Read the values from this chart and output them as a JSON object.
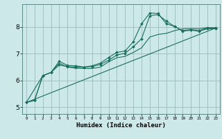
{
  "title": "",
  "xlabel": "Humidex (Indice chaleur)",
  "ylabel": "",
  "bg_color": "#cce8e8",
  "grid_color": "#9bbcbc",
  "line_color": "#1a6e5e",
  "xlim": [
    -0.5,
    23.5
  ],
  "ylim": [
    4.75,
    8.85
  ],
  "xticks": [
    0,
    1,
    2,
    3,
    4,
    5,
    6,
    7,
    8,
    9,
    10,
    11,
    12,
    13,
    14,
    15,
    16,
    17,
    18,
    19,
    20,
    21,
    22,
    23
  ],
  "yticks": [
    5,
    6,
    7,
    8
  ],
  "lines": [
    {
      "x": [
        0,
        1,
        2,
        3,
        4,
        5,
        6,
        7,
        8,
        9,
        10,
        11,
        12,
        13,
        14,
        15,
        16,
        17,
        18,
        19,
        20,
        21,
        22,
        23
      ],
      "y": [
        5.18,
        5.26,
        6.18,
        6.3,
        6.72,
        6.56,
        6.55,
        6.5,
        6.55,
        6.65,
        6.86,
        7.05,
        7.1,
        7.45,
        8.12,
        8.52,
        8.5,
        8.12,
        8.02,
        7.86,
        7.9,
        7.86,
        7.96,
        7.96
      ],
      "marker": true
    },
    {
      "x": [
        0,
        1,
        2,
        3,
        4,
        5,
        6,
        7,
        8,
        9,
        10,
        11,
        12,
        13,
        14,
        15,
        16,
        17,
        18,
        19,
        20,
        21,
        22,
        23
      ],
      "y": [
        5.18,
        5.26,
        6.18,
        6.3,
        6.58,
        6.52,
        6.5,
        6.5,
        6.52,
        6.6,
        6.76,
        6.95,
        7.02,
        7.26,
        7.56,
        8.42,
        8.46,
        8.22,
        8.02,
        7.84,
        7.88,
        7.84,
        7.93,
        7.93
      ],
      "marker": true
    },
    {
      "x": [
        0,
        2,
        3,
        4,
        5,
        6,
        7,
        8,
        9,
        10,
        11,
        12,
        13,
        14,
        15,
        16,
        17,
        18,
        19,
        20,
        21,
        22,
        23
      ],
      "y": [
        5.18,
        6.18,
        6.3,
        6.65,
        6.5,
        6.46,
        6.45,
        6.45,
        6.5,
        6.7,
        6.85,
        6.9,
        7.05,
        7.22,
        7.62,
        7.72,
        7.76,
        7.86,
        7.93,
        7.94,
        7.93,
        7.97,
        7.97
      ],
      "marker": false
    },
    {
      "x": [
        0,
        23
      ],
      "y": [
        5.18,
        7.96
      ],
      "marker": false
    }
  ]
}
